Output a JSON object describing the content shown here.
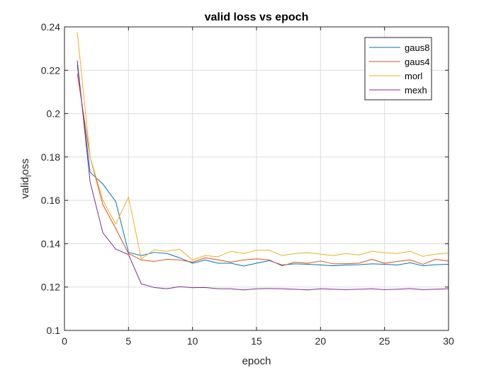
{
  "chart_data": {
    "type": "line",
    "title": "valid loss vs epoch",
    "xlabel": "epoch",
    "ylabel": "valid loss",
    "ylabel_rendered": {
      "before": "valid",
      "sub": "l",
      "after": "oss"
    },
    "xlim": [
      0,
      30
    ],
    "ylim": [
      0.1,
      0.24
    ],
    "xticks": [
      0,
      5,
      10,
      15,
      20,
      25,
      30
    ],
    "xtick_labels": [
      "0",
      "5",
      "10",
      "15",
      "20",
      "25",
      "30"
    ],
    "yticks": [
      0.1,
      0.12,
      0.14,
      0.16,
      0.18,
      0.2,
      0.22,
      0.24
    ],
    "ytick_labels": [
      "0.1",
      "0.12",
      "0.14",
      "0.16",
      "0.18",
      "0.2",
      "0.22",
      "0.24"
    ],
    "grid": true,
    "legend_position": "top-right",
    "x": [
      1,
      2,
      3,
      4,
      5,
      6,
      7,
      8,
      9,
      10,
      11,
      12,
      13,
      14,
      15,
      16,
      17,
      18,
      19,
      20,
      21,
      22,
      23,
      24,
      25,
      26,
      27,
      28,
      29,
      30
    ],
    "series": [
      {
        "name": "gaus8",
        "color": "#0072BD",
        "values": [
          0.2225,
          0.173,
          0.1675,
          0.1595,
          0.136,
          0.1345,
          0.136,
          0.1355,
          0.1335,
          0.131,
          0.1325,
          0.131,
          0.131,
          0.1297,
          0.131,
          0.1322,
          0.1302,
          0.1307,
          0.1305,
          0.1302,
          0.1298,
          0.1302,
          0.1303,
          0.1307,
          0.1305,
          0.1302,
          0.1312,
          0.1298,
          0.1303,
          0.1305
        ]
      },
      {
        "name": "gaus4",
        "color": "#D95319",
        "values": [
          0.2185,
          0.18,
          0.158,
          0.147,
          0.1355,
          0.1325,
          0.1318,
          0.1328,
          0.1325,
          0.1315,
          0.1335,
          0.1325,
          0.1315,
          0.1325,
          0.133,
          0.1325,
          0.1298,
          0.1315,
          0.131,
          0.132,
          0.1307,
          0.1308,
          0.131,
          0.1328,
          0.131,
          0.1318,
          0.1325,
          0.1305,
          0.1328,
          0.132
        ]
      },
      {
        "name": "morl",
        "color": "#EDB120",
        "values": [
          0.2375,
          0.18,
          0.16,
          0.149,
          0.1615,
          0.133,
          0.1372,
          0.1365,
          0.1375,
          0.1325,
          0.1345,
          0.134,
          0.1365,
          0.1355,
          0.137,
          0.137,
          0.1345,
          0.1355,
          0.1358,
          0.1352,
          0.1345,
          0.1355,
          0.1348,
          0.1365,
          0.1358,
          0.1355,
          0.1365,
          0.1342,
          0.1352,
          0.1357
        ]
      },
      {
        "name": "mexh",
        "color": "#7E2F8E",
        "values": [
          0.2245,
          0.1685,
          0.145,
          0.1375,
          0.135,
          0.1215,
          0.1198,
          0.1192,
          0.1202,
          0.1197,
          0.1198,
          0.1192,
          0.1192,
          0.1187,
          0.1192,
          0.1193,
          0.1192,
          0.119,
          0.1187,
          0.1192,
          0.119,
          0.1188,
          0.119,
          0.1192,
          0.1188,
          0.119,
          0.1193,
          0.1188,
          0.119,
          0.1192
        ]
      }
    ]
  }
}
